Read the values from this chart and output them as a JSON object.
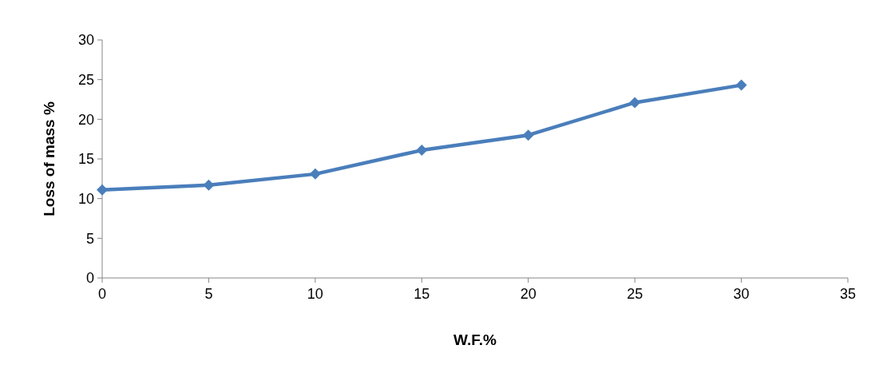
{
  "chart_data": {
    "type": "line",
    "xlabel": "W.F.%",
    "ylabel": "Loss of mass %",
    "x": [
      0,
      5,
      10,
      15,
      20,
      25,
      30
    ],
    "series": [
      {
        "color": "#4a7ebb",
        "values": [
          11.1,
          11.7,
          13.1,
          16.1,
          18.0,
          22.1,
          24.3
        ]
      }
    ],
    "xlim": [
      0,
      35
    ],
    "xticks": [
      0,
      5,
      10,
      15,
      20,
      25,
      30,
      35
    ],
    "ylim": [
      0,
      30
    ],
    "yticks": [
      0,
      5,
      10,
      15,
      20,
      25,
      30
    ],
    "grid": false,
    "marker": "diamond",
    "line_style": "solid"
  }
}
